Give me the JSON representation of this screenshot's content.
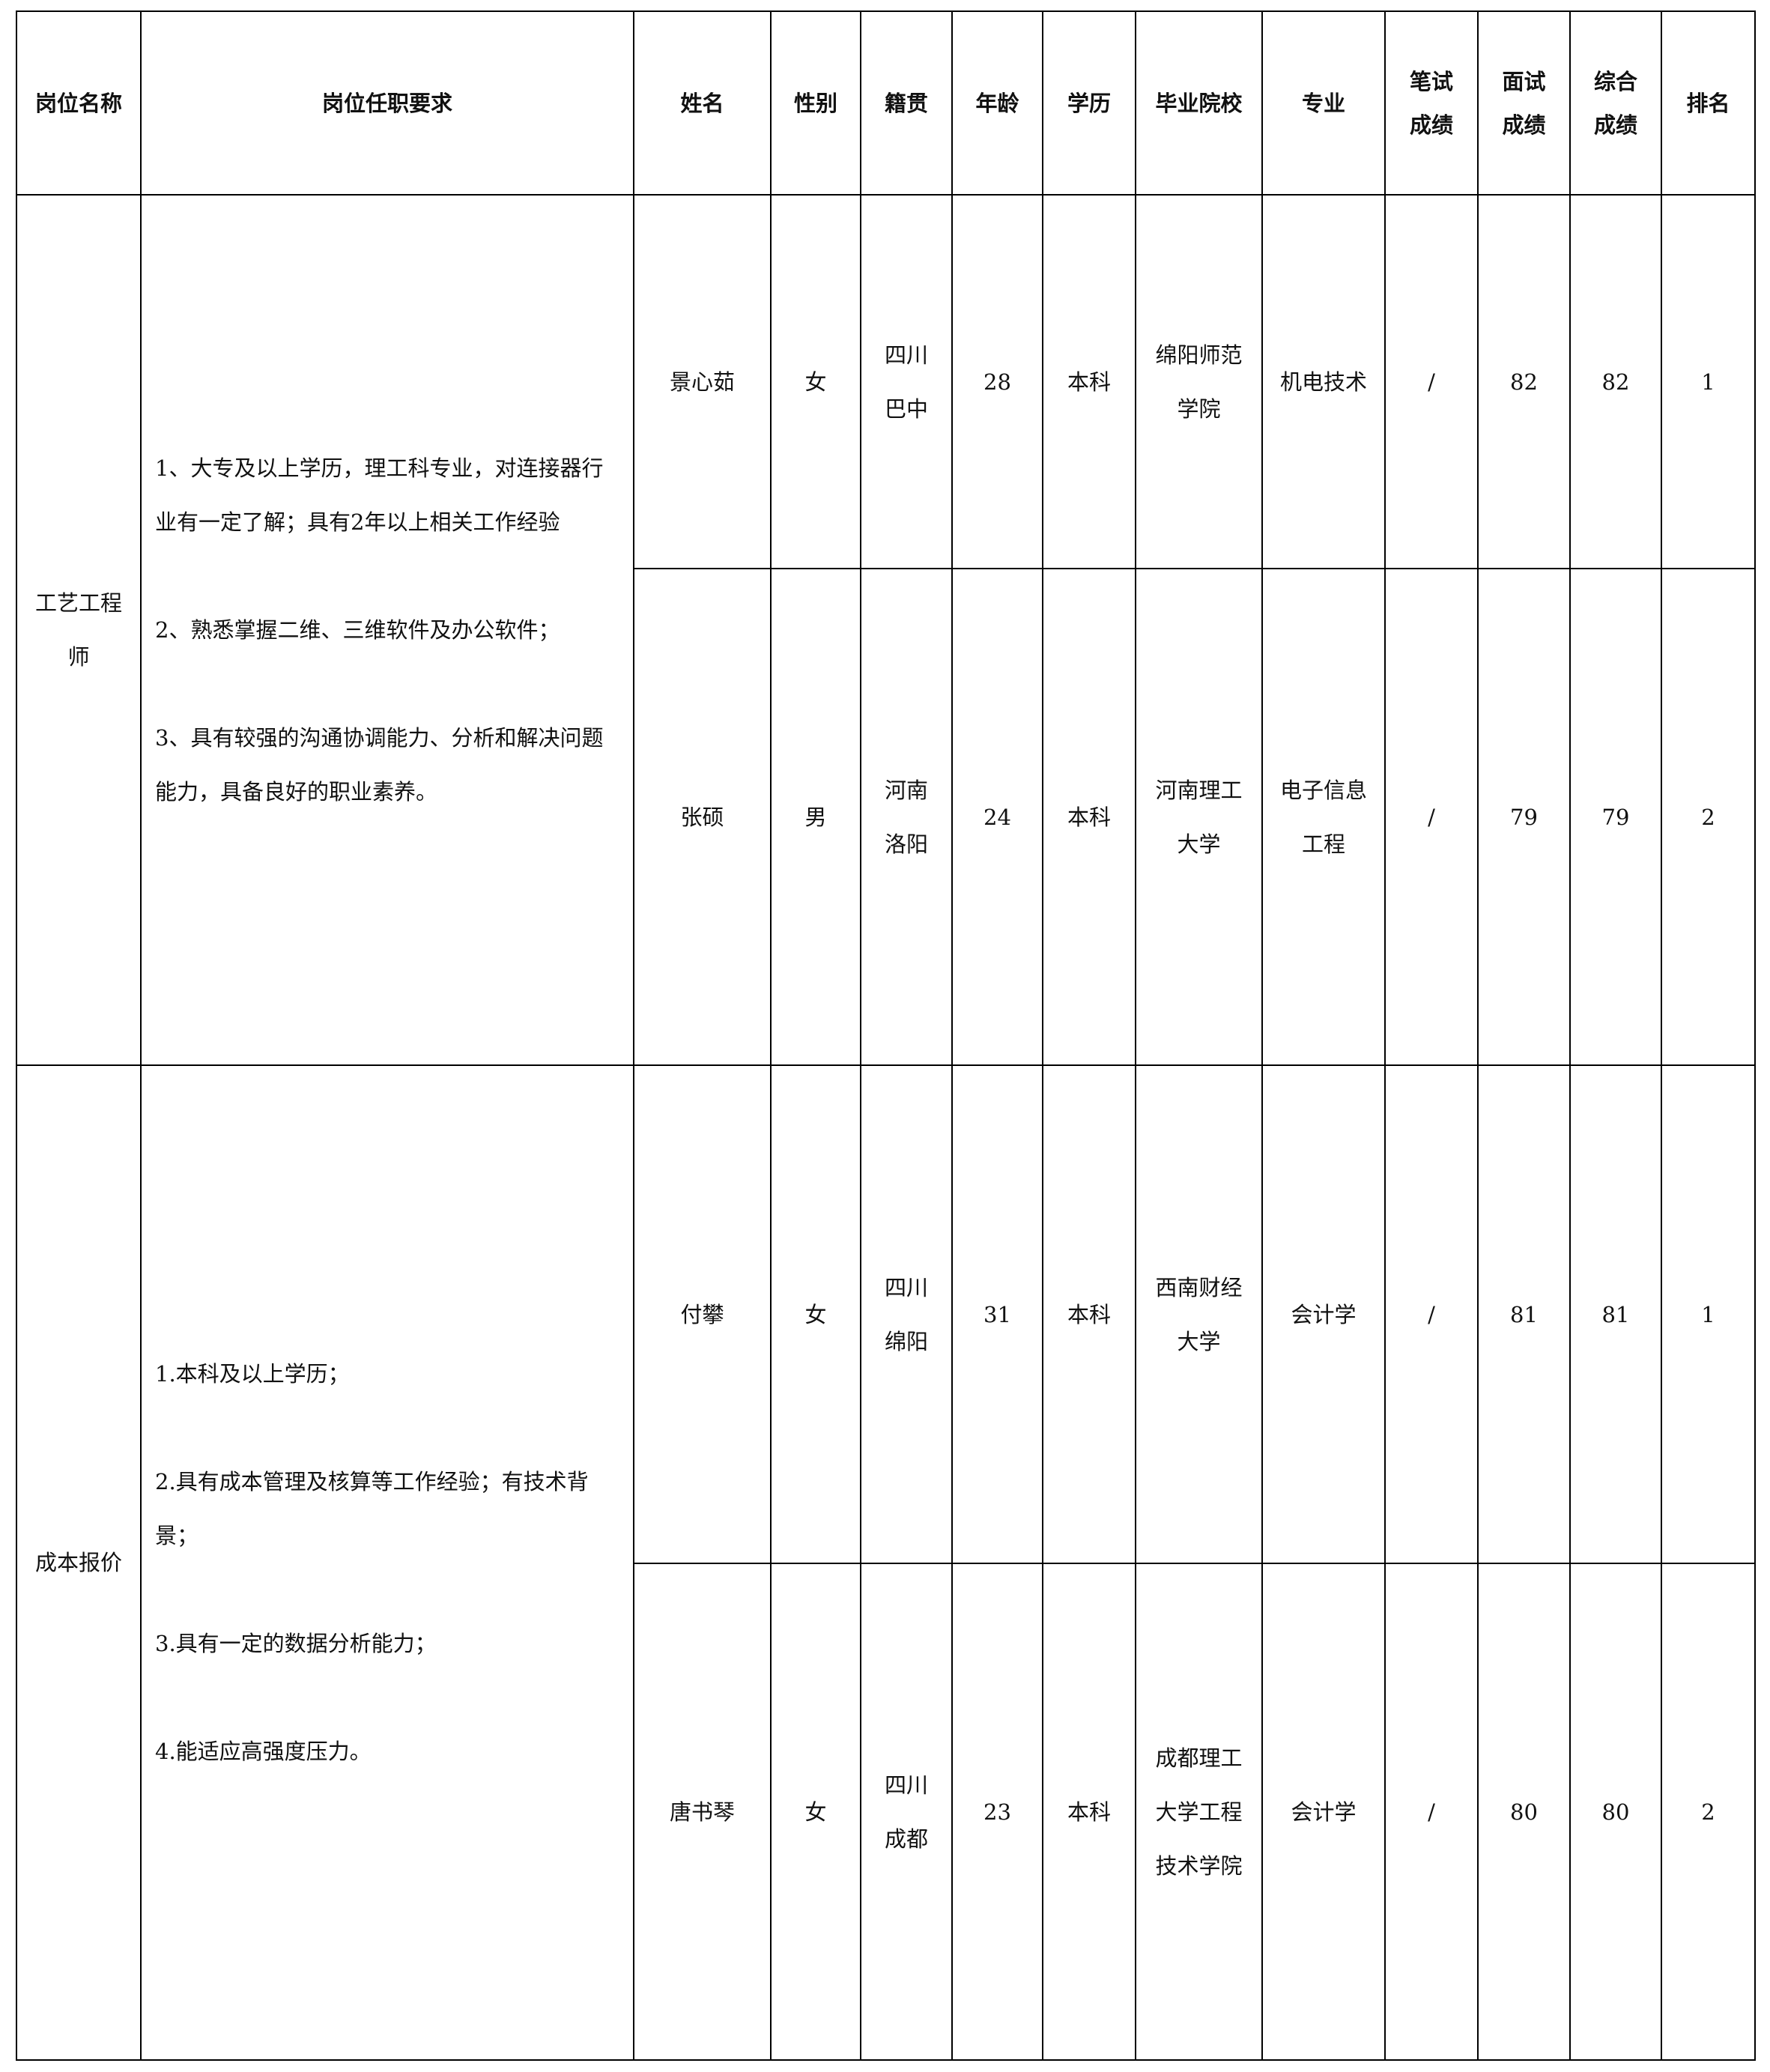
{
  "headers": [
    "岗位名称",
    "岗位任职要求",
    "姓名",
    "性别",
    "籍贯",
    "年龄",
    "学历",
    "毕业院校",
    "专业",
    "笔试\n成绩",
    "面试\n成绩",
    "综合\n成绩",
    "排名"
  ],
  "positions": [
    {
      "title": "工艺工程\n师",
      "requirements": [
        "1、大专及以上学历，理工科专业，对连接器行业有一定了解；具有2年以上相关工作经验",
        "2、熟悉掌握二维、三维软件及办公软件；",
        "3、具有较强的沟通协调能力、分析和解决问题能力，具备良好的职业素养。"
      ],
      "candidates": [
        {
          "name": "景心茹",
          "gender": "女",
          "origin": "四川\n巴中",
          "age": "28",
          "education": "本科",
          "school": "绵阳师范\n学院",
          "major": "机电技术",
          "written": "/",
          "interview": "82",
          "total": "82",
          "rank": "1"
        },
        {
          "name": "张硕",
          "gender": "男",
          "origin": "河南\n洛阳",
          "age": "24",
          "education": "本科",
          "school": "河南理工\n大学",
          "major": "电子信息\n工程",
          "written": "/",
          "interview": "79",
          "total": "79",
          "rank": "2"
        }
      ]
    },
    {
      "title": "成本报价",
      "requirements": [
        "1.本科及以上学历；",
        "2.具有成本管理及核算等工作经验；有技术背景；",
        "3.具有一定的数据分析能力；",
        "4.能适应高强度压力。"
      ],
      "candidates": [
        {
          "name": "付攀",
          "gender": "女",
          "origin": "四川\n绵阳",
          "age": "31",
          "education": "本科",
          "school": "西南财经\n大学",
          "major": "会计学",
          "written": "/",
          "interview": "81",
          "total": "81",
          "rank": "1"
        },
        {
          "name": "唐书琴",
          "gender": "女",
          "origin": "四川\n成都",
          "age": "23",
          "education": "本科",
          "school": "成都理工\n大学工程\n技术学院",
          "major": "会计学",
          "written": "/",
          "interview": "80",
          "total": "80",
          "rank": "2"
        }
      ]
    }
  ]
}
